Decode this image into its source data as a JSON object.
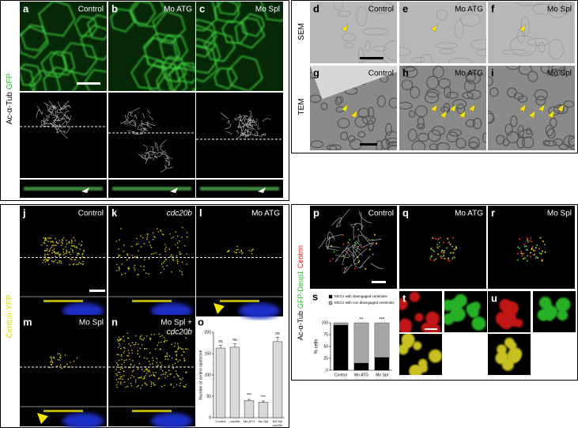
{
  "figure": {
    "block_a": {
      "stain": [
        "Ac-α-Tub",
        "GFP"
      ],
      "panels": [
        {
          "letter": "a",
          "label": "Control"
        },
        {
          "letter": "b",
          "label": "Mo ATG"
        },
        {
          "letter": "c",
          "label": "Mo Spl"
        }
      ]
    },
    "block_d": {
      "rows": [
        "SEM",
        "TEM"
      ],
      "panels": [
        {
          "letter": "d",
          "label": "Control"
        },
        {
          "letter": "e",
          "label": "Mo ATG"
        },
        {
          "letter": "f",
          "label": "Mo Spl"
        },
        {
          "letter": "g",
          "label": "Control"
        },
        {
          "letter": "h",
          "label": "Mo ATG"
        },
        {
          "letter": "i",
          "label": "Mo Spl"
        }
      ]
    },
    "block_j": {
      "stain": "Centrin-YFP",
      "panels": [
        {
          "letter": "j",
          "label": "Control"
        },
        {
          "letter": "k",
          "label": "cdc20b"
        },
        {
          "letter": "l",
          "label": "Mo ATG"
        },
        {
          "letter": "m",
          "label": "Mo Spl"
        },
        {
          "letter": "n",
          "label": [
            "Mo Spl +",
            "cdc20b"
          ]
        }
      ],
      "chart": {
        "letter": "o",
        "type": "bar",
        "y_label": "Number of centrin spots/cell",
        "categories": [
          "Control",
          "cdc20b",
          "Mo ATG",
          "Mo Spl",
          [
            "Mo Spl",
            "cdc20b"
          ]
        ],
        "values": [
          163,
          165,
          40,
          36,
          178
        ],
        "errors": [
          6,
          8,
          3,
          3,
          10
        ],
        "annotations": [
          "ns",
          "ns",
          "***",
          "***",
          "ns"
        ],
        "color": "#d9d9d9",
        "ylim": [
          0,
          200
        ],
        "yticks": [
          0,
          50,
          100,
          150,
          200
        ]
      }
    },
    "block_p": {
      "stain": [
        "Ac-α-Tub",
        "GFP-Deup1",
        "Centrin"
      ],
      "panels": [
        {
          "letter": "p",
          "label": "Control"
        },
        {
          "letter": "q",
          "label": "Mo ATG"
        },
        {
          "letter": "r",
          "label": "Mo Spl"
        },
        {
          "letter": "t"
        },
        {
          "letter": "u"
        }
      ],
      "chart": {
        "letter": "s",
        "type": "stacked_bar",
        "y_label": "% cells",
        "categories": [
          "Control",
          "Mo ATG",
          "Mo Spl"
        ],
        "series": [
          {
            "name": "MCCs with disengaged centrioles",
            "color": "#000000",
            "values": [
              95,
              15,
              27
            ]
          },
          {
            "name": "MCCs with non disengaged centrioles",
            "color": "#a6a6a6",
            "values": [
              5,
              85,
              73
            ]
          }
        ],
        "annotations": [
          null,
          "**",
          "***"
        ],
        "ylim": [
          0,
          100
        ],
        "yticks": [
          0,
          25,
          50,
          75,
          100
        ]
      }
    }
  }
}
